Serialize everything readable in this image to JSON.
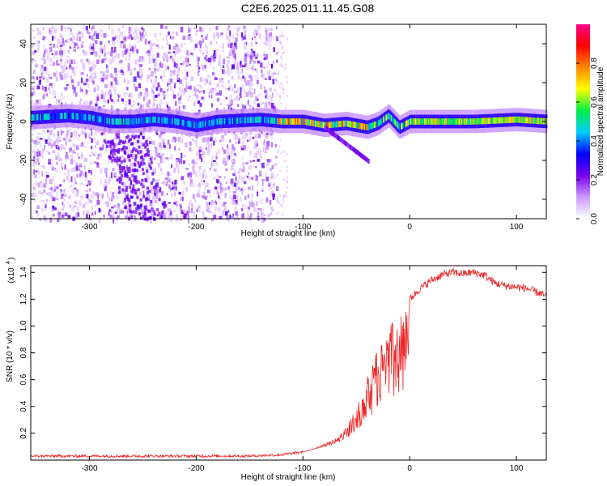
{
  "title": "C2E6.2025.011.11.45.G08",
  "chart_data": [
    {
      "type": "heatmap",
      "name": "spectrogram",
      "xlabel": "Height of straight line (km)",
      "ylabel": "Frequency (Hz)",
      "xlim": [
        -355,
        128
      ],
      "ylim": [
        -50,
        50
      ],
      "xticks": [
        -300,
        -200,
        -100,
        0,
        100
      ],
      "yticks": [
        -40,
        -20,
        0,
        20,
        40
      ],
      "colorbar": {
        "label": "Normalized spectral amplitude",
        "range": [
          0,
          1
        ],
        "ticks": [
          "0.0",
          "0.2",
          "0.4",
          "0.6",
          "0.8"
        ],
        "tick_values": [
          0,
          0.2,
          0.4,
          0.6,
          0.8
        ],
        "colors": [
          "#ffffff",
          "#cc99ff",
          "#7700ee",
          "#0000ff",
          "#00ccff",
          "#00ee44",
          "#ffff00",
          "#ff8800",
          "#ff0000",
          "#ff0088"
        ]
      },
      "signal_track": [
        [
          -355,
          2
        ],
        [
          -320,
          3
        ],
        [
          -300,
          2
        ],
        [
          -280,
          0
        ],
        [
          -260,
          0
        ],
        [
          -240,
          1
        ],
        [
          -220,
          0
        ],
        [
          -200,
          -2
        ],
        [
          -180,
          0
        ],
        [
          -140,
          1
        ],
        [
          -120,
          0
        ],
        [
          -100,
          0
        ],
        [
          -80,
          -2
        ],
        [
          -60,
          -1
        ],
        [
          -40,
          -3
        ],
        [
          -30,
          -1
        ],
        [
          -20,
          3
        ],
        [
          -10,
          -3
        ],
        [
          0,
          0
        ],
        [
          20,
          0
        ],
        [
          60,
          0
        ],
        [
          100,
          1
        ],
        [
          128,
          0
        ]
      ],
      "noise_region_until": -125
    },
    {
      "type": "line",
      "name": "snr",
      "xlabel": "Height of straight line (km)",
      "ylabel": "SNR (10 * v/v)",
      "multiplier": "(x10",
      "multiplier_exponent": "4",
      "xlim": [
        -355,
        128
      ],
      "ylim": [
        0,
        1.45
      ],
      "xticks": [
        -300,
        -200,
        -100,
        0,
        100
      ],
      "yticks": [
        0.2,
        0.4,
        0.6,
        0.8,
        1.0,
        1.2,
        1.4
      ],
      "ytick_labels": [
        "0.2",
        "0.4",
        "0.6",
        "0.8",
        "1.0",
        "1.2",
        "1.4"
      ],
      "color": "#ee2222",
      "envelope": [
        [
          -355,
          0.03
        ],
        [
          -300,
          0.03
        ],
        [
          -200,
          0.03
        ],
        [
          -150,
          0.03
        ],
        [
          -120,
          0.04
        ],
        [
          -100,
          0.06
        ],
        [
          -85,
          0.1
        ],
        [
          -70,
          0.16
        ],
        [
          -60,
          0.24
        ],
        [
          -50,
          0.4
        ],
        [
          -45,
          0.5
        ],
        [
          -40,
          0.62
        ],
        [
          -35,
          0.74
        ],
        [
          -30,
          0.86
        ],
        [
          -25,
          0.95
        ],
        [
          -20,
          1.0
        ],
        [
          -15,
          1.04
        ],
        [
          -10,
          1.1
        ],
        [
          -5,
          1.14
        ],
        [
          0,
          1.2
        ],
        [
          10,
          1.28
        ],
        [
          20,
          1.34
        ],
        [
          30,
          1.38
        ],
        [
          40,
          1.4
        ],
        [
          50,
          1.39
        ],
        [
          60,
          1.4
        ],
        [
          70,
          1.38
        ],
        [
          80,
          1.32
        ],
        [
          90,
          1.3
        ],
        [
          100,
          1.29
        ],
        [
          110,
          1.28
        ],
        [
          120,
          1.25
        ],
        [
          128,
          1.22
        ]
      ]
    }
  ]
}
